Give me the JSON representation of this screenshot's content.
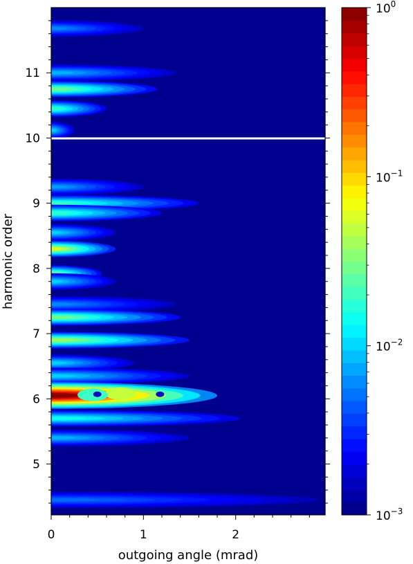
{
  "chart_data": {
    "type": "heatmap",
    "title": "",
    "xlabel": "outgoing angle (mrad)",
    "ylabel": "harmonic order",
    "xlim": [
      0,
      2.97
    ],
    "ylim": [
      4.22,
      12.0
    ],
    "x_ticks": [
      "0",
      "1",
      "2"
    ],
    "x_tick_values": [
      0,
      1,
      2
    ],
    "y_ticks": [
      "5",
      "6",
      "7",
      "8",
      "9",
      "10",
      "11"
    ],
    "y_tick_values": [
      5,
      6,
      7,
      8,
      9,
      10,
      11
    ],
    "colorscale": "jet",
    "colorbar": {
      "scale": "log",
      "range": [
        0.001,
        1
      ],
      "tick_labels": [
        {
          "base": "10",
          "exp": "0",
          "value": 1
        },
        {
          "base": "10",
          "exp": "−1",
          "value": 0.1
        },
        {
          "base": "10",
          "exp": "−2",
          "value": 0.01
        },
        {
          "base": "10",
          "exp": "−3",
          "value": 0.001
        }
      ]
    },
    "separator_line": {
      "y": 10.0,
      "color": "#ffffff"
    },
    "background_value": 0.001,
    "features": [
      {
        "order": 11.68,
        "angle_extent": 1.0,
        "peak": 0.006
      },
      {
        "order": 11.0,
        "angle_extent": 1.35,
        "peak": 0.008
      },
      {
        "order": 10.75,
        "angle_extent": 1.15,
        "peak": 0.03
      },
      {
        "order": 10.45,
        "angle_extent": 0.6,
        "peak": 0.02
      },
      {
        "order": 10.12,
        "angle_extent": 0.25,
        "peak": 0.01
      },
      {
        "order": 9.25,
        "angle_extent": 1.0,
        "peak": 0.007
      },
      {
        "order": 9.0,
        "angle_extent": 1.6,
        "peak": 0.02
      },
      {
        "order": 8.85,
        "angle_extent": 1.2,
        "peak": 0.02
      },
      {
        "order": 8.55,
        "angle_extent": 0.7,
        "peak": 0.01
      },
      {
        "order": 8.3,
        "angle_extent": 0.7,
        "peak": 0.06
      },
      {
        "order": 7.92,
        "angle_extent": 0.55,
        "peak": 0.03
      },
      {
        "order": 7.8,
        "angle_extent": 0.7,
        "peak": 0.01
      },
      {
        "order": 7.45,
        "angle_extent": 1.35,
        "peak": 0.006
      },
      {
        "order": 7.25,
        "angle_extent": 1.4,
        "peak": 0.03
      },
      {
        "order": 6.9,
        "angle_extent": 1.5,
        "peak": 0.04
      },
      {
        "order": 6.55,
        "angle_extent": 0.9,
        "peak": 0.01
      },
      {
        "order": 6.35,
        "angle_extent": 1.5,
        "peak": 0.01
      },
      {
        "order": 6.05,
        "angle_extent": 1.8,
        "peak": 1.0
      },
      {
        "order": 5.7,
        "angle_extent": 2.05,
        "peak": 0.015
      },
      {
        "order": 5.4,
        "angle_extent": 1.5,
        "peak": 0.008
      },
      {
        "order": 4.45,
        "angle_extent": 2.9,
        "peak": 0.005
      }
    ]
  }
}
